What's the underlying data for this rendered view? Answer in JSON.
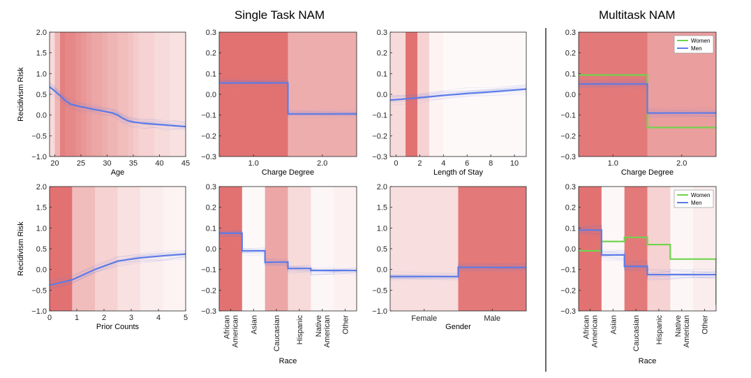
{
  "titles": {
    "single_task": "Single Task NAM",
    "multitask": "Multitask NAM"
  },
  "colors": {
    "men_line": "#5b7be8",
    "women_line": "#6fd44c",
    "band": "#e06a6a",
    "divider": "#000000"
  },
  "chart_data": [
    {
      "id": "age",
      "type": "line",
      "group": "Single Task NAM",
      "xlabel": "Age",
      "ylabel": "Recidivism Risk",
      "xlim": [
        19,
        45
      ],
      "ylim": [
        -1.0,
        2.0
      ],
      "xticks": [
        "20",
        "25",
        "30",
        "35",
        "40",
        "45"
      ],
      "yticks": [
        "−1.0",
        "−0.5",
        "0.0",
        "0.5",
        "1.0",
        "1.5",
        "2.0"
      ],
      "series": [
        {
          "x": [
            19,
            20,
            21,
            22,
            23,
            25,
            27,
            29,
            31,
            32,
            33,
            34,
            35,
            37,
            39,
            41,
            43,
            45
          ],
          "values": [
            0.68,
            0.58,
            0.47,
            0.35,
            0.26,
            0.2,
            0.15,
            0.1,
            0.05,
            0.0,
            -0.08,
            -0.14,
            -0.17,
            -0.2,
            -0.22,
            -0.24,
            -0.26,
            -0.28
          ]
        }
      ],
      "bands": [
        {
          "from": 19,
          "to": 20,
          "alpha": 0.25
        },
        {
          "from": 20,
          "to": 21,
          "alpha": 0.5
        },
        {
          "from": 21,
          "to": 22,
          "alpha": 0.85
        },
        {
          "from": 22,
          "to": 23,
          "alpha": 0.8
        },
        {
          "from": 23,
          "to": 24,
          "alpha": 0.8
        },
        {
          "from": 24,
          "to": 25,
          "alpha": 0.75
        },
        {
          "from": 25,
          "to": 26,
          "alpha": 0.7
        },
        {
          "from": 26,
          "to": 27,
          "alpha": 0.65
        },
        {
          "from": 27,
          "to": 28,
          "alpha": 0.6
        },
        {
          "from": 28,
          "to": 29,
          "alpha": 0.6
        },
        {
          "from": 29,
          "to": 30,
          "alpha": 0.55
        },
        {
          "from": 30,
          "to": 31,
          "alpha": 0.5
        },
        {
          "from": 31,
          "to": 32,
          "alpha": 0.5
        },
        {
          "from": 32,
          "to": 33,
          "alpha": 0.45
        },
        {
          "from": 33,
          "to": 34,
          "alpha": 0.45
        },
        {
          "from": 34,
          "to": 35,
          "alpha": 0.4
        },
        {
          "from": 35,
          "to": 36,
          "alpha": 0.35
        },
        {
          "from": 36,
          "to": 37,
          "alpha": 0.3
        },
        {
          "from": 37,
          "to": 38,
          "alpha": 0.3
        },
        {
          "from": 38,
          "to": 39,
          "alpha": 0.3
        },
        {
          "from": 39,
          "to": 40,
          "alpha": 0.25
        },
        {
          "from": 40,
          "to": 41,
          "alpha": 0.25
        },
        {
          "from": 41,
          "to": 42,
          "alpha": 0.25
        },
        {
          "from": 42,
          "to": 43,
          "alpha": 0.2
        },
        {
          "from": 43,
          "to": 44,
          "alpha": 0.2
        },
        {
          "from": 44,
          "to": 45,
          "alpha": 0.2
        }
      ]
    },
    {
      "id": "charge",
      "type": "line",
      "group": "Single Task NAM",
      "xlabel": "Charge Degree",
      "ylabel": "",
      "xlim": [
        0.5,
        2.5
      ],
      "ylim": [
        -0.3,
        0.3
      ],
      "xticks": [
        "1.0",
        "2.0"
      ],
      "yticks": [
        "−0.3",
        "−0.2",
        "−0.1",
        "0.0",
        "0.1",
        "0.2",
        "0.3"
      ],
      "series": [
        {
          "x": [
            0.5,
            1.5,
            1.5,
            2.5
          ],
          "values": [
            0.055,
            0.055,
            -0.095,
            -0.095
          ]
        }
      ],
      "bands": [
        {
          "from": 0.5,
          "to": 1.5,
          "alpha": 0.95
        },
        {
          "from": 1.5,
          "to": 2.5,
          "alpha": 0.55
        }
      ]
    },
    {
      "id": "stay",
      "type": "line",
      "group": "Single Task NAM",
      "xlabel": "Length of Stay",
      "ylabel": "",
      "xlim": [
        -0.5,
        11
      ],
      "ylim": [
        -0.3,
        0.3
      ],
      "xticks": [
        "0",
        "2",
        "4",
        "6",
        "8",
        "10"
      ],
      "yticks": [
        "−0.3",
        "−0.2",
        "−0.1",
        "0.0",
        "0.1",
        "0.2",
        "0.3"
      ],
      "series": [
        {
          "x": [
            -0.5,
            2,
            4,
            6,
            8,
            11
          ],
          "values": [
            -0.028,
            -0.016,
            -0.005,
            0.004,
            0.012,
            0.025
          ]
        }
      ],
      "bands": [
        {
          "from": -0.5,
          "to": 0.8,
          "alpha": 0.25
        },
        {
          "from": 0.8,
          "to": 1.8,
          "alpha": 0.95
        },
        {
          "from": 1.8,
          "to": 2.8,
          "alpha": 0.3
        },
        {
          "from": 2.8,
          "to": 4,
          "alpha": 0.08
        },
        {
          "from": 4,
          "to": 11,
          "alpha": 0.04
        }
      ]
    },
    {
      "id": "mt-charge",
      "type": "line",
      "group": "Multitask NAM",
      "xlabel": "Charge Degree",
      "ylabel": "",
      "xlim": [
        0.5,
        2.5
      ],
      "ylim": [
        -0.3,
        0.3
      ],
      "xticks": [
        "1.0",
        "2.0"
      ],
      "yticks": [
        "−0.3",
        "−0.2",
        "−0.1",
        "0.0",
        "0.1",
        "0.2",
        "0.3"
      ],
      "legend": [
        "Women",
        "Men"
      ],
      "series": [
        {
          "name": "Women",
          "x": [
            0.5,
            1.5,
            1.5,
            2.5
          ],
          "values": [
            0.093,
            0.093,
            -0.16,
            -0.16
          ]
        },
        {
          "name": "Men",
          "x": [
            0.5,
            1.5,
            1.5,
            2.5
          ],
          "values": [
            0.05,
            0.05,
            -0.09,
            -0.09
          ]
        }
      ],
      "bands": [
        {
          "from": 0.5,
          "to": 1.5,
          "alpha": 0.9
        },
        {
          "from": 1.5,
          "to": 2.5,
          "alpha": 0.65
        }
      ]
    },
    {
      "id": "prior",
      "type": "line",
      "group": "Single Task NAM",
      "xlabel": "Prior Counts",
      "ylabel": "Recidivism Risk",
      "xlim": [
        0,
        5
      ],
      "ylim": [
        -1.0,
        2.0
      ],
      "xticks": [
        "0",
        "1",
        "2",
        "3",
        "4",
        "5"
      ],
      "yticks": [
        "−1.0",
        "−0.5",
        "0.0",
        "0.5",
        "1.0",
        "1.5",
        "2.0"
      ],
      "series": [
        {
          "x": [
            0,
            0.83,
            1.67,
            2.5,
            3.33,
            4.17,
            5
          ],
          "values": [
            -0.38,
            -0.25,
            0.0,
            0.2,
            0.28,
            0.33,
            0.37
          ]
        }
      ],
      "bands": [
        {
          "from": 0,
          "to": 0.83,
          "alpha": 0.95
        },
        {
          "from": 0.83,
          "to": 1.67,
          "alpha": 0.45
        },
        {
          "from": 1.67,
          "to": 2.5,
          "alpha": 0.3
        },
        {
          "from": 2.5,
          "to": 3.33,
          "alpha": 0.2
        },
        {
          "from": 3.33,
          "to": 4.17,
          "alpha": 0.12
        },
        {
          "from": 4.17,
          "to": 5,
          "alpha": 0.08
        }
      ]
    },
    {
      "id": "race",
      "type": "line",
      "group": "Single Task NAM",
      "xlabel": "Race",
      "ylabel": "",
      "categories": [
        "African American",
        "Asian",
        "Caucasian",
        "Hispanic",
        "Native American",
        "Other"
      ],
      "ylim": [
        -0.3,
        0.3
      ],
      "yticks": [
        "−0.3",
        "−0.2",
        "−0.1",
        "0.0",
        "0.1",
        "0.2",
        "0.3"
      ],
      "series": [
        {
          "values": [
            0.075,
            -0.01,
            -0.065,
            -0.095,
            -0.105,
            -0.105
          ]
        }
      ],
      "band_alphas": [
        0.95,
        0.04,
        0.6,
        0.25,
        0.06,
        0.1
      ]
    },
    {
      "id": "gender",
      "type": "line",
      "group": "Single Task NAM",
      "xlabel": "Gender",
      "ylabel": "",
      "categories": [
        "Female",
        "Male"
      ],
      "ylim": [
        -1.0,
        2.0
      ],
      "yticks": [
        "−1.0",
        "−0.5",
        "0.0",
        "0.5",
        "1.0",
        "1.5",
        "2.0"
      ],
      "series": [
        {
          "values": [
            -0.17,
            0.05
          ]
        }
      ],
      "band_alphas": [
        0.22,
        0.9
      ]
    },
    {
      "id": "mt-race",
      "type": "line",
      "group": "Multitask NAM",
      "xlabel": "Race",
      "ylabel": "",
      "categories": [
        "African American",
        "Asian",
        "Caucasian",
        "Hispanic",
        "Native American",
        "Other"
      ],
      "ylim": [
        -0.3,
        0.3
      ],
      "yticks": [
        "−0.3",
        "−0.2",
        "−0.1",
        "0.0",
        "0.1",
        "0.2",
        "0.3"
      ],
      "legend": [
        "Women",
        "Men"
      ],
      "series": [
        {
          "name": "Women",
          "values": [
            -0.01,
            0.035,
            0.055,
            0.02,
            -0.05,
            -0.05
          ],
          "end_drop": -0.27
        },
        {
          "name": "Men",
          "values": [
            0.09,
            -0.03,
            -0.085,
            -0.125,
            -0.125,
            -0.125
          ]
        }
      ],
      "band_alphas": [
        0.95,
        0.05,
        0.9,
        0.3,
        0.06,
        0.12
      ]
    }
  ]
}
